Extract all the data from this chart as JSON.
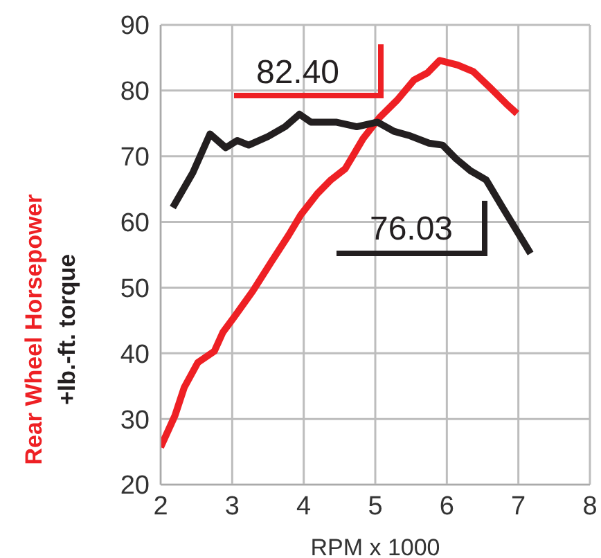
{
  "chart_data": {
    "type": "line",
    "xlabel": "RPM x 1000",
    "xlim": [
      2,
      8
    ],
    "xticks": [
      2,
      3,
      4,
      5,
      6,
      7,
      8
    ],
    "ylim": [
      20,
      90
    ],
    "yticks": [
      20,
      30,
      40,
      50,
      60,
      70,
      80,
      90
    ],
    "grid": true,
    "legend": "left",
    "marker": "none",
    "annotations": [
      "82.40",
      "76.03"
    ],
    "series": [
      {
        "name": "Rear Wheel Horsepower",
        "color": "#ee2024",
        "x": [
          2.0,
          2.2,
          2.33,
          2.52,
          2.75,
          2.87,
          3.04,
          3.29,
          3.54,
          3.79,
          3.96,
          4.19,
          4.38,
          4.58,
          4.83,
          5.06,
          5.31,
          5.54,
          5.73,
          5.9,
          6.15,
          6.37,
          6.6,
          6.83,
          6.98
        ],
        "values": [
          25.7,
          30.5,
          34.8,
          38.6,
          40.3,
          43.2,
          45.7,
          49.5,
          53.8,
          58,
          61.1,
          64.3,
          66.4,
          68.1,
          72.7,
          75.9,
          78.6,
          81.6,
          82.7,
          84.6,
          83.9,
          82.9,
          80.5,
          78,
          76.5
        ]
      },
      {
        "name": "+lb.-ft. torque",
        "color": "#231f20",
        "x": [
          2.17,
          2.45,
          2.69,
          2.91,
          3.07,
          3.23,
          3.5,
          3.74,
          3.94,
          4.1,
          4.45,
          4.74,
          5.03,
          5.26,
          5.49,
          5.75,
          5.94,
          6.13,
          6.33,
          6.55,
          6.78,
          7.17
        ],
        "values": [
          62.2,
          67.5,
          73.4,
          71.3,
          72.4,
          71.7,
          73,
          74.5,
          76.4,
          75.2,
          75.2,
          74.5,
          75.2,
          73.8,
          73.1,
          72,
          71.7,
          69.6,
          67.8,
          66.4,
          62.2,
          55.2
        ]
      }
    ]
  }
}
